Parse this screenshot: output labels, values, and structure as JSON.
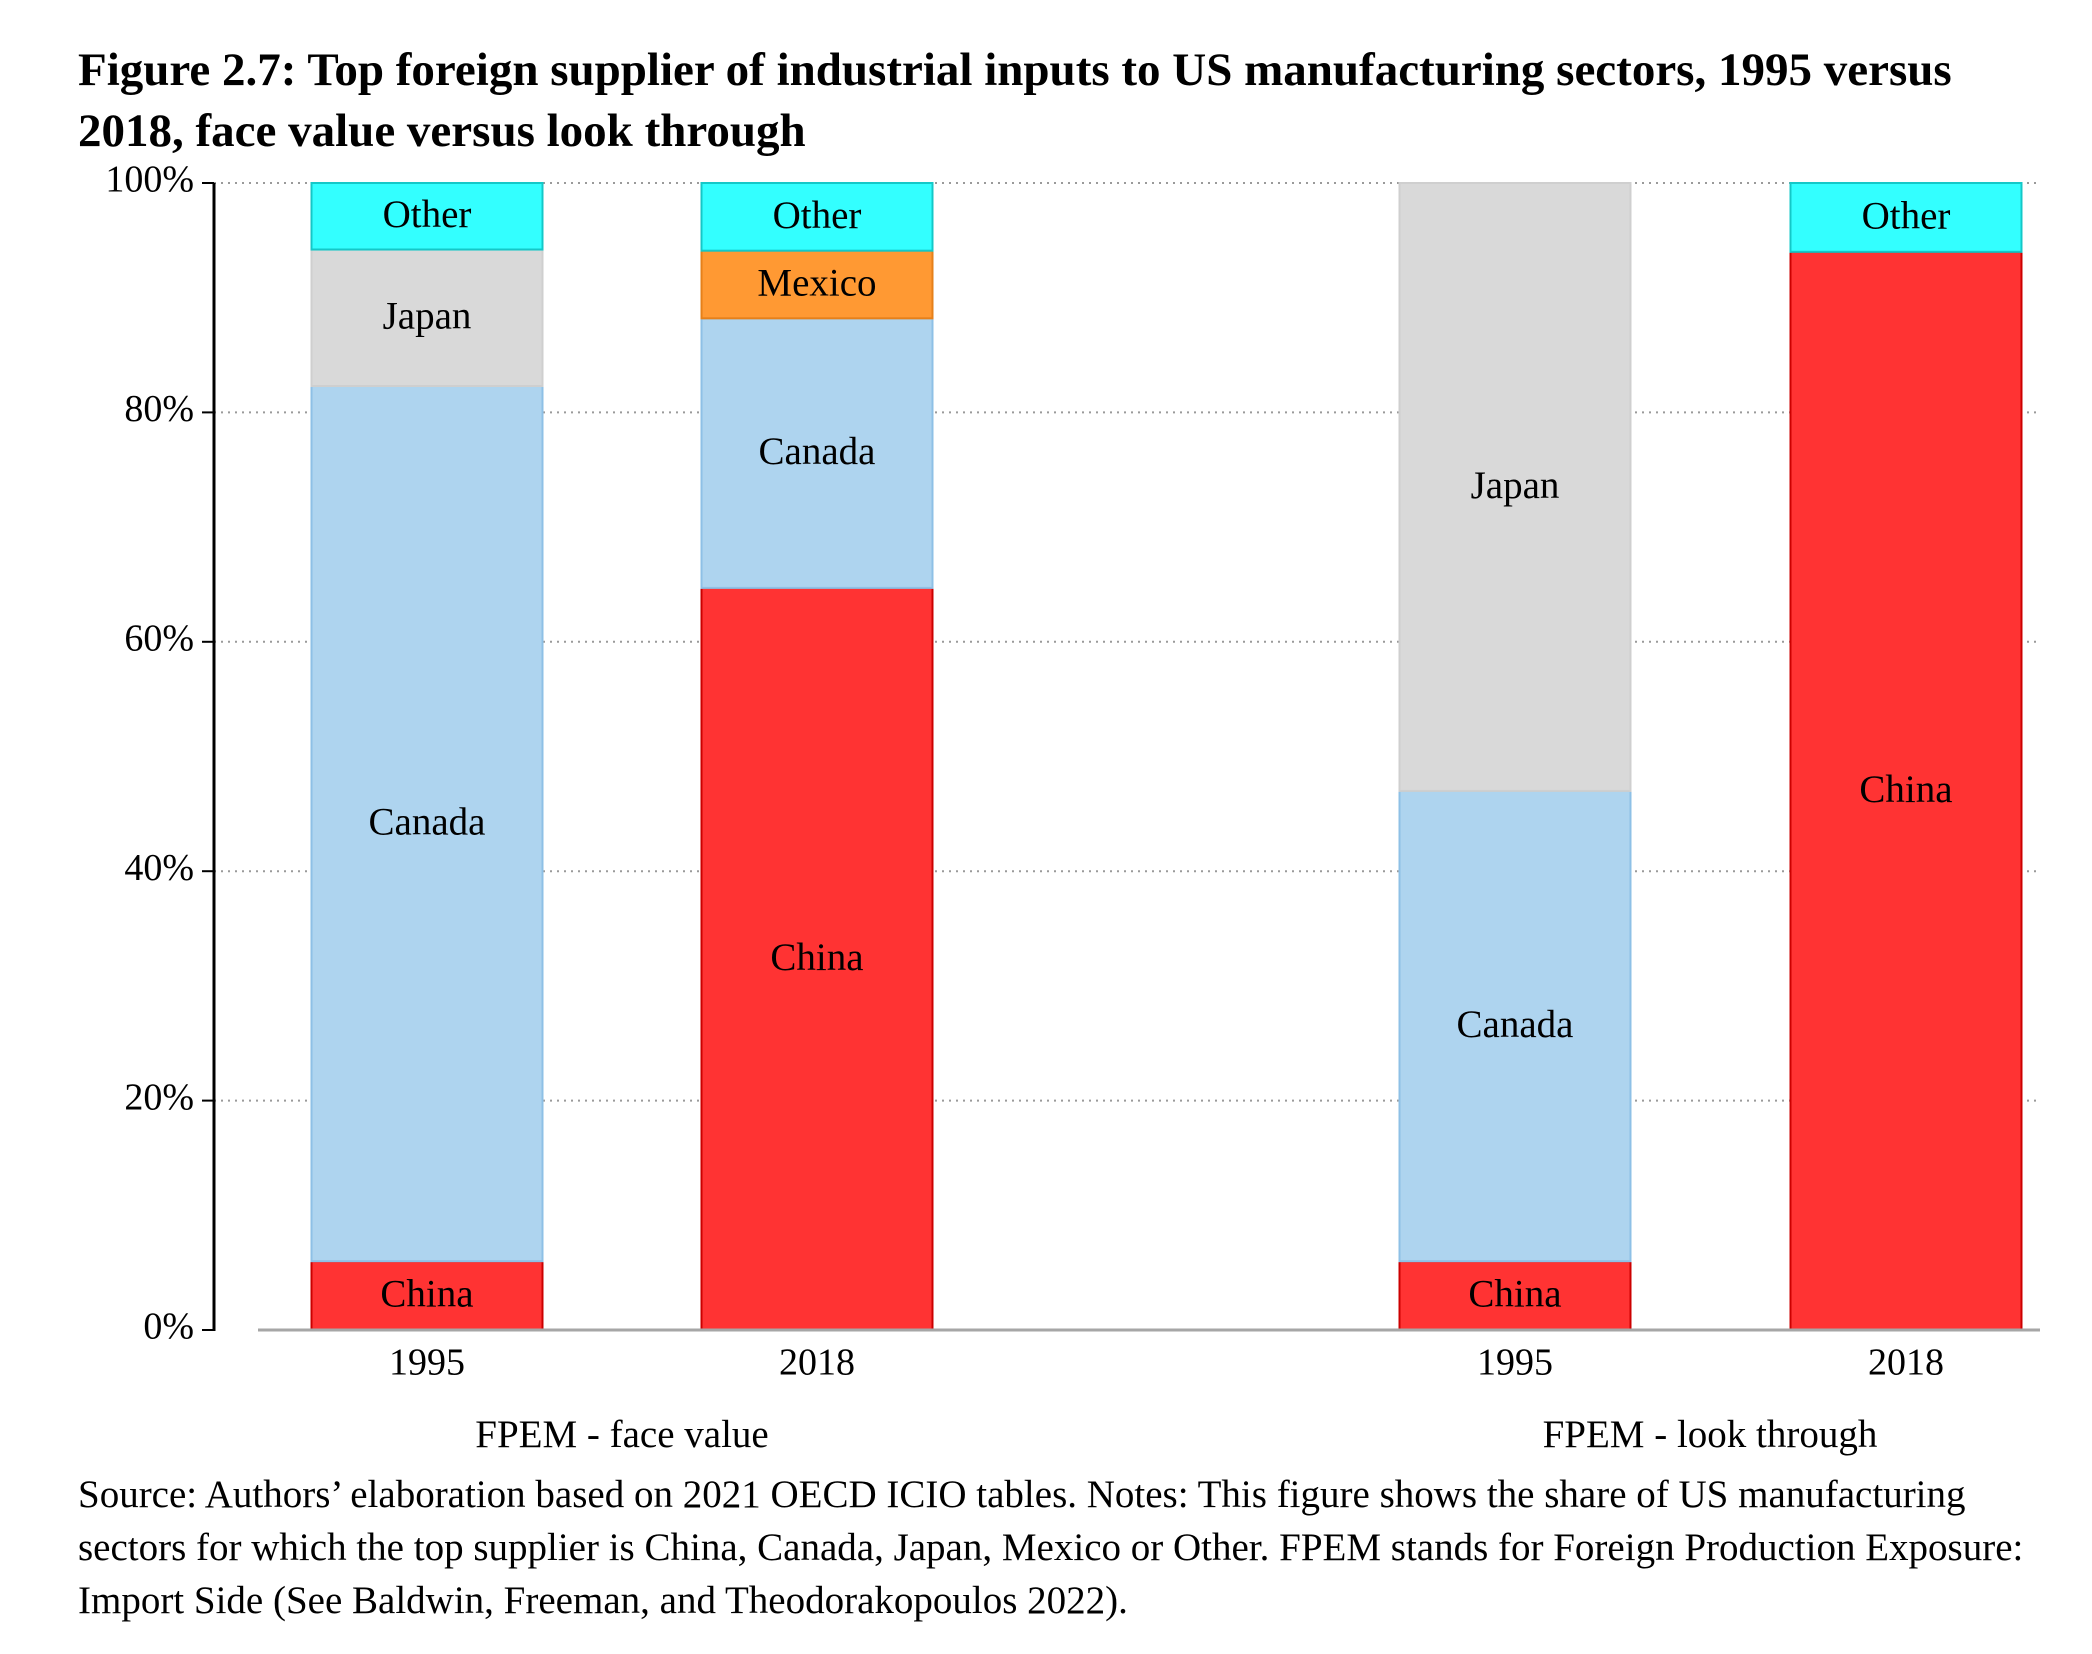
{
  "title": "Figure 2.7: Top foreign supplier of industrial inputs to US manufacturing sectors, 1995 versus 2018, face value versus look through",
  "note": "Source: Authors’ elaboration based on 2021 OECD ICIO tables. Notes: This figure shows the share of US manufacturing sectors for which the top supplier is China, Canada, Japan, Mexico or Other. FPEM stands for Foreign Production Exposure: Import Side (See Baldwin, Freeman, and Theodorakopoulos 2022).",
  "colors": {
    "China": "#ff3333",
    "Canada": "#aed4ef",
    "Japan": "#d9d9d9",
    "Mexico": "#ff9933",
    "Other": "#33ffff"
  },
  "chart_data": {
    "type": "bar",
    "stacked": true,
    "ylim": [
      0,
      100
    ],
    "yticks": [
      "0%",
      "20%",
      "40%",
      "60%",
      "80%",
      "100%"
    ],
    "grid": "dotted horizontal",
    "groups": [
      {
        "label": "FPEM - face value",
        "bars": [
          {
            "x": "1995",
            "segments": [
              {
                "name": "China",
                "value": 6
              },
              {
                "name": "Canada",
                "value": 76.3
              },
              {
                "name": "Japan",
                "value": 11.9
              },
              {
                "name": "Other",
                "value": 5.8
              }
            ]
          },
          {
            "x": "2018",
            "segments": [
              {
                "name": "China",
                "value": 64.7
              },
              {
                "name": "Canada",
                "value": 23.5
              },
              {
                "name": "Mexico",
                "value": 5.9
              },
              {
                "name": "Other",
                "value": 5.9
              }
            ]
          }
        ]
      },
      {
        "label": "FPEM - look through",
        "bars": [
          {
            "x": "1995",
            "segments": [
              {
                "name": "China",
                "value": 6
              },
              {
                "name": "Canada",
                "value": 41
              },
              {
                "name": "Japan",
                "value": 53
              }
            ]
          },
          {
            "x": "2018",
            "segments": [
              {
                "name": "China",
                "value": 94
              },
              {
                "name": "Other",
                "value": 6
              }
            ]
          }
        ]
      }
    ]
  }
}
